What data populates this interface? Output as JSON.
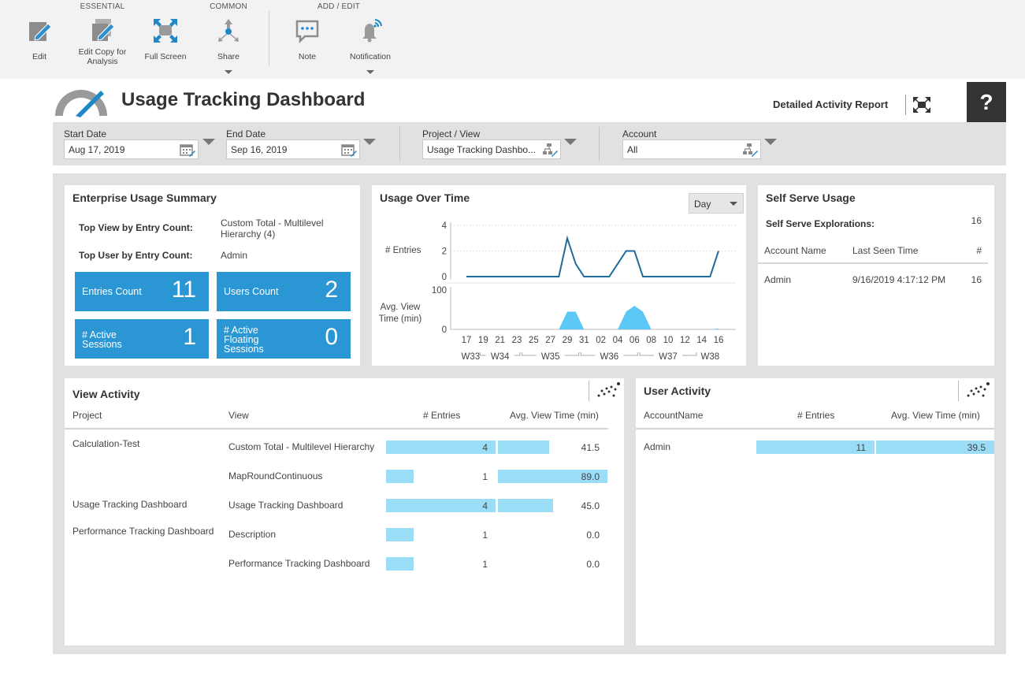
{
  "toolbar": {
    "groups": [
      "ESSENTIAL",
      "COMMON",
      "ADD / EDIT"
    ],
    "buttons": {
      "edit": "Edit",
      "edit_copy": "Edit Copy for Analysis",
      "full_screen": "Full Screen",
      "share": "Share",
      "note": "Note",
      "notification": "Notification"
    }
  },
  "header": {
    "title": "Usage Tracking Dashboard",
    "detail_link": "Detailed Activity Report",
    "help": "?"
  },
  "filters": {
    "start_date": {
      "label": "Start Date",
      "value": "Aug 17, 2019"
    },
    "end_date": {
      "label": "End Date",
      "value": "Sep 16, 2019"
    },
    "project_view": {
      "label": "Project / View",
      "value": "Usage Tracking Dashbo..."
    },
    "account": {
      "label": "Account",
      "value": "All"
    }
  },
  "enterprise": {
    "title": "Enterprise Usage Summary",
    "top_view_label": "Top View by Entry Count:",
    "top_view_value": "Custom Total - Multilevel Hierarchy (4)",
    "top_user_label": "Top User by Entry Count:",
    "top_user_value": "Admin",
    "tiles": [
      {
        "label": "Entries Count",
        "value": "11"
      },
      {
        "label": "Users Count",
        "value": "2"
      },
      {
        "label": "# Active Sessions",
        "value": "1"
      },
      {
        "label": "# Active Floating Sessions",
        "value": "0"
      }
    ]
  },
  "usage_over_time": {
    "title": "Usage Over Time",
    "granularity": "Day",
    "entries_label": "# Entries",
    "avg_label": "Avg. View Time (min)"
  },
  "chart_data": {
    "type": "line",
    "title": "Usage Over Time",
    "x": [
      "17",
      "18",
      "19",
      "20",
      "21",
      "22",
      "23",
      "24",
      "25",
      "26",
      "27",
      "28",
      "29",
      "30",
      "31",
      "01",
      "02",
      "03",
      "04",
      "05",
      "06",
      "07",
      "08",
      "09",
      "10",
      "11",
      "12",
      "13",
      "14",
      "15",
      "16"
    ],
    "x_tick_labels": [
      "17",
      "19",
      "21",
      "23",
      "25",
      "27",
      "29",
      "31",
      "02",
      "04",
      "06",
      "08",
      "10",
      "12",
      "14",
      "16"
    ],
    "week_labels": [
      "W33",
      "W34",
      "W35",
      "W36",
      "W37",
      "W38"
    ],
    "series": [
      {
        "name": "# Entries",
        "chart": "line",
        "ylim": [
          0,
          4
        ],
        "yticks": [
          0,
          2,
          4
        ],
        "values": [
          0,
          0,
          0,
          0,
          0,
          0,
          0,
          0,
          0,
          0,
          0,
          0,
          3,
          1,
          0,
          0,
          0,
          0,
          1,
          2,
          2,
          0,
          0,
          0,
          0,
          0,
          0,
          0,
          0,
          0,
          2
        ]
      },
      {
        "name": "Avg. View Time (min)",
        "chart": "area",
        "ylim": [
          0,
          100
        ],
        "yticks": [
          0,
          100
        ],
        "values": [
          0,
          0,
          0,
          0,
          0,
          0,
          0,
          0,
          0,
          0,
          0,
          0,
          45,
          45,
          0,
          0,
          0,
          0,
          0,
          45,
          60,
          45,
          0,
          0,
          0,
          0,
          0,
          0,
          0,
          0,
          2
        ]
      }
    ],
    "colors": {
      "line": "#1f6b9c",
      "area": "#5bc8f5"
    }
  },
  "self_serve": {
    "title": "Self Serve Usage",
    "explorations_label": "Self Serve Explorations:",
    "explorations_value": "16",
    "columns": [
      "Account Name",
      "Last Seen Time",
      "#"
    ],
    "rows": [
      {
        "account": "Admin",
        "last_seen": "9/16/2019 4:17:12 PM",
        "count": "16"
      }
    ]
  },
  "view_activity": {
    "title": "View Activity",
    "columns": [
      "Project",
      "View",
      "# Entries",
      "Avg. View Time (min)"
    ],
    "rows": [
      {
        "project": "Calculation-Test",
        "view": "Custom Total - Multilevel Hierarchy",
        "entries": "4",
        "entries_value": 4,
        "avg": "41.5",
        "avg_value": 41.5
      },
      {
        "project": "",
        "view": "MapRoundContinuous",
        "entries": "1",
        "entries_value": 1,
        "avg": "89.0",
        "avg_value": 89.0
      },
      {
        "project": "Usage Tracking Dashboard",
        "view": "Usage Tracking Dashboard",
        "entries": "4",
        "entries_value": 4,
        "avg": "45.0",
        "avg_value": 45.0
      },
      {
        "project": "Performance Tracking Dashboard",
        "view": "Description",
        "entries": "1",
        "entries_value": 1,
        "avg": "0.0",
        "avg_value": 0
      },
      {
        "project": "",
        "view": "Performance Tracking Dashboard",
        "entries": "1",
        "entries_value": 1,
        "avg": "0.0",
        "avg_value": 0
      }
    ],
    "entries_max": 4,
    "avg_max": 89.0
  },
  "user_activity": {
    "title": "User Activity",
    "columns": [
      "AccountName",
      "# Entries",
      "Avg. View Time (min)"
    ],
    "rows": [
      {
        "account": "Admin",
        "entries": "11",
        "entries_value": 11,
        "avg": "39.5",
        "avg_value": 39.5
      }
    ],
    "entries_max": 11,
    "avg_max": 39.5
  },
  "colors": {
    "accent": "#2a96d4",
    "bar": "#9bdcf7",
    "toolbar_icon": "#1e88c8"
  }
}
